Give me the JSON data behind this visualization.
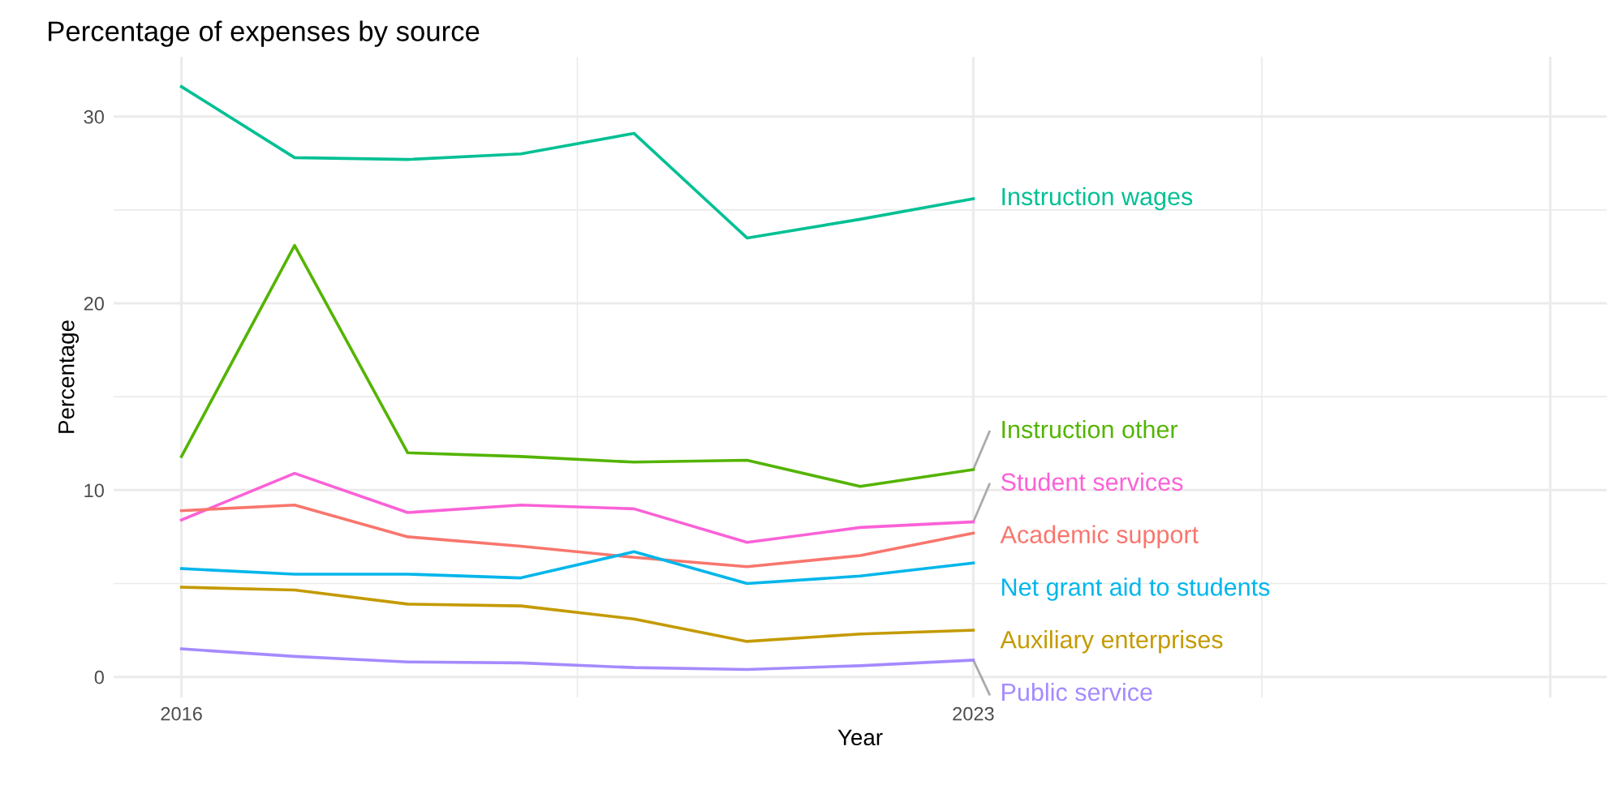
{
  "chart_data": {
    "type": "line",
    "title": "Percentage of expenses by source",
    "xlabel": "Year",
    "ylabel": "Percentage",
    "x": [
      2016,
      2017,
      2018,
      2019,
      2020,
      2021,
      2022,
      2023
    ],
    "series": [
      {
        "name": "Instruction wages",
        "color": "#00c094",
        "values": [
          31.6,
          27.8,
          27.7,
          28.0,
          29.1,
          23.5,
          24.5,
          25.6
        ]
      },
      {
        "name": "Instruction other",
        "color": "#53b400",
        "values": [
          11.8,
          23.1,
          12.0,
          11.8,
          11.5,
          11.6,
          10.2,
          11.1
        ]
      },
      {
        "name": "Student services",
        "color": "#fb61d7",
        "values": [
          8.4,
          10.9,
          8.8,
          9.2,
          9.0,
          7.2,
          8.0,
          8.3
        ]
      },
      {
        "name": "Academic support",
        "color": "#f8766d",
        "values": [
          8.9,
          9.2,
          7.5,
          7.0,
          6.4,
          5.9,
          6.5,
          7.7
        ]
      },
      {
        "name": "Net grant aid to students",
        "color": "#00b6eb",
        "values": [
          5.8,
          5.5,
          5.5,
          5.3,
          6.7,
          5.0,
          5.4,
          6.1
        ]
      },
      {
        "name": "Auxiliary enterprises",
        "color": "#c49a00",
        "values": [
          4.8,
          4.65,
          3.9,
          3.8,
          3.1,
          1.9,
          2.3,
          2.5
        ]
      },
      {
        "name": "Public service",
        "color": "#a58aff",
        "values": [
          1.5,
          1.1,
          0.8,
          0.75,
          0.5,
          0.4,
          0.6,
          0.9
        ]
      }
    ],
    "xlim": [
      2015.4,
      2028.6
    ],
    "xticks": [
      2016,
      2023,
      {
        "value": 2028.1,
        "label": null
      }
    ],
    "ylim": [
      -1.1,
      33.2
    ],
    "yticks": [
      0,
      10,
      20,
      30
    ],
    "grid": true,
    "legend": false,
    "line_style": "solid",
    "marker": "none"
  }
}
